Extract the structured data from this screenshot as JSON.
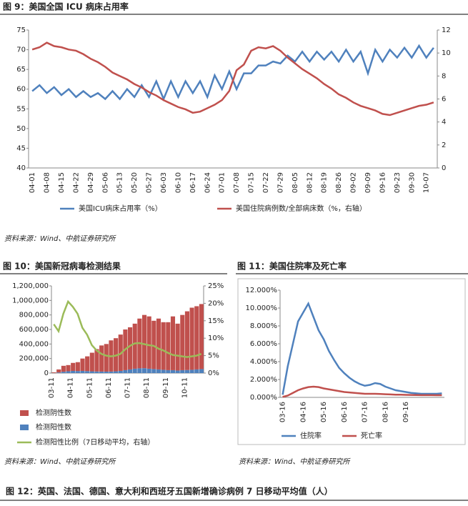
{
  "chart_data": [
    {
      "type": "line",
      "title": "图 9：美国全国 ICU 病床占用率",
      "source": "资料来源：Wind、中航证券研究所",
      "categories": [
        "04-01",
        null,
        "04-08",
        null,
        "04-15",
        null,
        "04-22",
        null,
        "04-29",
        null,
        "05-06",
        null,
        "05-13",
        null,
        "05-20",
        null,
        "05-27",
        null,
        "06-03",
        null,
        "06-10",
        null,
        "06-17",
        null,
        "06-24",
        null,
        "07-01",
        null,
        "07-08",
        null,
        "07-15",
        null,
        "07-22",
        null,
        "07-29",
        null,
        "08-05",
        null,
        "08-12",
        null,
        "08-19",
        null,
        "08-26",
        null,
        "09-02",
        null,
        "09-09",
        null,
        "09-16",
        null,
        "09-23",
        null,
        "09-30",
        null,
        "10-07",
        null
      ],
      "series": [
        {
          "name": "美国ICU病床占用率（%）",
          "color": "#4f81bd",
          "values": [
            59.5,
            61,
            59,
            60.5,
            58.5,
            60,
            58,
            59.5,
            58,
            59,
            57.5,
            59.5,
            57.5,
            60,
            58,
            61,
            58,
            62,
            57.5,
            62,
            58,
            62,
            59,
            62,
            58,
            63.5,
            60,
            64.5,
            60,
            64,
            64,
            66,
            66,
            67,
            66.5,
            68.5,
            67,
            69.5,
            67,
            69.5,
            67.5,
            69.5,
            67,
            70,
            67,
            69.5,
            64,
            70,
            67,
            70,
            68,
            70.5,
            68,
            71,
            68,
            70.5
          ]
        },
        {
          "name": "美国住院病例数/全部病床数（%，右轴）",
          "color": "#c0504d",
          "axis": "y2",
          "values": [
            10.3,
            10.5,
            10.9,
            10.6,
            10.5,
            10.3,
            10.2,
            9.9,
            9.5,
            9.2,
            8.8,
            8.3,
            8,
            7.7,
            7.3,
            7,
            6.6,
            6.3,
            5.9,
            5.6,
            5.3,
            5.1,
            4.8,
            4.9,
            5.2,
            5.5,
            5.9,
            6.7,
            8.5,
            9,
            10.2,
            10.5,
            10.4,
            10.6,
            10.2,
            9.6,
            9.1,
            8.6,
            8.2,
            7.8,
            7.3,
            6.9,
            6.4,
            6.1,
            5.7,
            5.4,
            5.2,
            5,
            4.7,
            4.6,
            4.8,
            5,
            5.2,
            5.4,
            5.5,
            5.7
          ]
        }
      ],
      "ylim": [
        40,
        75
      ],
      "yticks": [
        40,
        45,
        50,
        55,
        60,
        65,
        70,
        75
      ],
      "y2lim": [
        0,
        12
      ],
      "y2ticks": [
        0,
        2,
        4,
        6,
        8,
        10,
        12
      ],
      "grid": false,
      "legend": "bottom"
    },
    {
      "type": "bar",
      "title": "图 10：美国新冠病毒检测结果",
      "source": "资料来源：Wind、中航证券研究所",
      "categories": [
        "03-11",
        null,
        null,
        null,
        "04-11",
        null,
        null,
        null,
        "05-11",
        null,
        null,
        null,
        "06-11",
        null,
        null,
        null,
        "07-11",
        null,
        null,
        null,
        "08-11",
        null,
        null,
        null,
        "09-11",
        null,
        null,
        null,
        "10-11",
        null,
        null,
        null
      ],
      "series": [
        {
          "name": "检测阴性数",
          "color": "#c0504d",
          "values": [
            9000,
            42000,
            82000,
            85000,
            110000,
            122000,
            170000,
            203000,
            256000,
            308000,
            359000,
            380000,
            429000,
            456000,
            500000,
            560000,
            580000,
            620000,
            685000,
            733000,
            720000,
            665000,
            700000,
            655000,
            660000,
            740000,
            645000,
            760000,
            808000,
            855000,
            870000,
            895000
          ]
        },
        {
          "name": "检测阳性数",
          "color": "#4f81bd",
          "values": [
            1000,
            8000,
            18000,
            25000,
            30000,
            28000,
            30000,
            27000,
            24000,
            22000,
            21000,
            20000,
            21000,
            24000,
            30000,
            40000,
            50000,
            60000,
            65000,
            67000,
            60000,
            55000,
            50000,
            45000,
            40000,
            40000,
            35000,
            40000,
            42000,
            45000,
            50000,
            55000
          ]
        },
        {
          "name": "检测阳性比例（7日移动平均，右轴）",
          "color": "#9bbb59",
          "type": "line",
          "axis": "y2",
          "values": [
            14,
            12,
            17,
            20.5,
            19,
            17,
            13,
            11,
            8,
            6.5,
            5.5,
            5,
            4.8,
            5,
            5.5,
            6.8,
            7.8,
            8.5,
            8.6,
            8.3,
            8,
            7.8,
            7,
            6.5,
            5.8,
            5.2,
            5,
            4.8,
            4.6,
            4.8,
            5,
            5.5
          ]
        }
      ],
      "ylim": [
        0,
        1200000
      ],
      "yticks": [
        0,
        {
          "value": 200000,
          "label": "200,000"
        },
        {
          "value": 400000,
          "label": "400,000"
        },
        {
          "value": 600000,
          "label": "600,000"
        },
        {
          "value": 800000,
          "label": "800,000"
        },
        {
          "value": 1000000,
          "label": "1,000,000"
        },
        {
          "value": 1200000,
          "label": "1,200,000"
        }
      ],
      "y2lim": [
        0,
        25
      ],
      "y2ticks": [
        {
          "value": 0,
          "label": "0%"
        },
        {
          "value": 5,
          "label": "5%"
        },
        {
          "value": 10,
          "label": "10%"
        },
        {
          "value": 15,
          "label": "15%"
        },
        {
          "value": 20,
          "label": "20%"
        },
        {
          "value": 25,
          "label": "25%"
        }
      ],
      "stacked": true,
      "grid": false,
      "legend": "bottom"
    },
    {
      "type": "line",
      "title": "图 11：美国住院率及死亡率",
      "source": "资料来源：Wind、中航证券研究所",
      "categories": [
        "03-16",
        null,
        null,
        null,
        "04-16",
        null,
        null,
        null,
        "05-16",
        null,
        null,
        null,
        "06-16",
        null,
        null,
        null,
        "07-16",
        null,
        null,
        null,
        "08-16",
        null,
        null,
        null,
        "09-16",
        null,
        null,
        null,
        null,
        null,
        null,
        null
      ],
      "series": [
        {
          "name": "住院率",
          "color": "#4f81bd",
          "values": [
            0.3,
            3.5,
            6,
            8.5,
            9.5,
            10.5,
            9,
            7.5,
            6.5,
            5.2,
            4.2,
            3.3,
            2.7,
            2.2,
            1.8,
            1.5,
            1.3,
            1.4,
            1.6,
            1.5,
            1.2,
            1.0,
            0.8,
            0.7,
            0.6,
            0.5,
            0.45,
            0.4,
            0.4,
            0.4,
            0.4,
            0.45
          ]
        },
        {
          "name": "死亡率",
          "color": "#c0504d",
          "values": [
            0.05,
            0.2,
            0.5,
            0.8,
            1.0,
            1.15,
            1.2,
            1.15,
            1.0,
            0.9,
            0.8,
            0.7,
            0.6,
            0.55,
            0.5,
            0.45,
            0.4,
            0.4,
            0.4,
            0.38,
            0.35,
            0.33,
            0.3,
            0.3,
            0.28,
            0.27,
            0.26,
            0.25,
            0.25,
            0.25,
            0.24,
            0.24
          ]
        }
      ],
      "ylim": [
        0,
        12
      ],
      "yticks": [
        {
          "value": 0,
          "label": "0.000%"
        },
        {
          "value": 2,
          "label": "2.000%"
        },
        {
          "value": 4,
          "label": "4.000%"
        },
        {
          "value": 6,
          "label": "6.000%"
        },
        {
          "value": 8,
          "label": "8.000%"
        },
        {
          "value": 10,
          "label": "10.000%"
        },
        {
          "value": 12,
          "label": "12.000%"
        }
      ],
      "grid": false,
      "legend": "bottom"
    }
  ],
  "next_figure_title": "图 12：英国、法国、德国、意大利和西班牙五国新增确诊病例 7 日移动平均值（人）"
}
